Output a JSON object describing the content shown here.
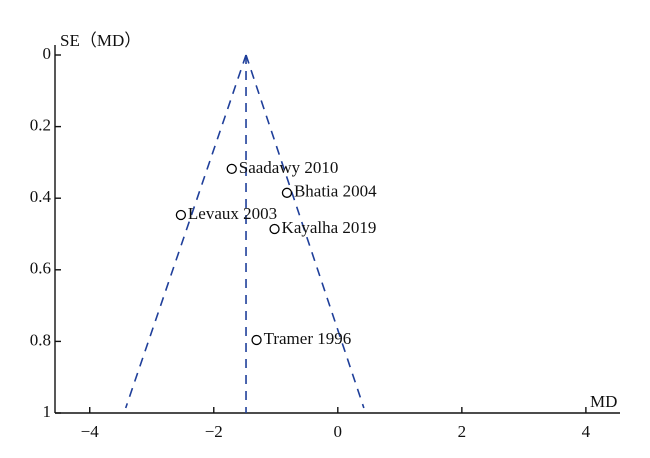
{
  "chart_data": {
    "type": "scatter",
    "x_label": "MD",
    "y_label": "SE（MD）",
    "series": [
      {
        "color": "#000000",
        "labels": [
          "Saadawy 2010",
          "Bhatia 2004",
          "Levaux 2003",
          "Kayalha 2019",
          "Tramer 1996"
        ],
        "x": [
          -1.71,
          -0.82,
          -2.53,
          -1.02,
          -1.31
        ],
        "values": [
          0.318,
          0.385,
          0.447,
          0.486,
          0.796
        ]
      }
    ],
    "reference_lines": [
      {
        "x": [
          -1.48,
          -3.42
        ],
        "values": [
          0,
          0.986
        ]
      },
      {
        "x": [
          -1.48,
          0.42
        ],
        "values": [
          0,
          0.986
        ]
      },
      {
        "x": [
          -1.48,
          -1.48
        ],
        "values": [
          0,
          1
        ]
      }
    ],
    "reference_color": "#1f3f9a",
    "xlim": [
      -4.56,
      4.55
    ],
    "xticks": [
      {
        "value": -4,
        "label": "−4"
      },
      {
        "value": -2,
        "label": "−2"
      },
      0,
      2,
      4
    ],
    "ylim": [
      0,
      1
    ],
    "y_inverted": true,
    "yticks": [
      0,
      0.2,
      0.4,
      0.6,
      0.8,
      1
    ]
  }
}
